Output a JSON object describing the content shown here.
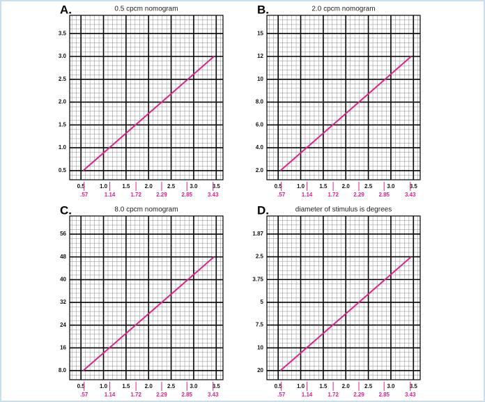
{
  "chart_data": [
    {
      "type": "line",
      "panel": "A.",
      "title": "0.5 cpcm nomogram",
      "xlim": [
        0.25,
        3.65
      ],
      "xticks": [
        0.5,
        {
          "value": 1.0,
          "label": "1.0"
        },
        1.5,
        {
          "value": 2.0,
          "label": "2.0"
        },
        2.5,
        {
          "value": 3.0,
          "label": "3.0"
        },
        3.5
      ],
      "xticks2": [
        {
          "value": 0.57,
          "label": ".57"
        },
        1.14,
        1.72,
        2.29,
        2.85,
        3.43
      ],
      "xticks2_color": "#e0218a",
      "ylim": [
        0.3,
        3.9
      ],
      "yticks": [
        0.5,
        {
          "value": 1.0,
          "label": "1.0"
        },
        1.5,
        {
          "value": 2.0,
          "label": "2.0"
        },
        2.5,
        {
          "value": 3.0,
          "label": "3.0"
        },
        3.5
      ],
      "ytick_spacing": "even",
      "grid": true,
      "series": [
        {
          "color": "#e0218a",
          "x": [
            0.55,
            3.45
          ],
          "values": [
            0.5,
            3.0
          ]
        }
      ]
    },
    {
      "type": "line",
      "panel": "B.",
      "title": "2.0 cpcm nomogram",
      "xlim": [
        0.25,
        3.65
      ],
      "xticks": [
        0.5,
        {
          "value": 1.0,
          "label": "1.0"
        },
        1.5,
        {
          "value": 2.0,
          "label": "2.0"
        },
        2.5,
        {
          "value": 3.0,
          "label": "3.0"
        },
        3.5
      ],
      "xticks2": [
        {
          "value": 0.57,
          "label": ".57"
        },
        1.14,
        1.72,
        2.29,
        2.85,
        3.43
      ],
      "xticks2_color": "#e0218a",
      "ylim": [
        1.2,
        17.4
      ],
      "yticks": [
        {
          "value": 2,
          "label": "2.0"
        },
        {
          "value": 4,
          "label": "4.0"
        },
        {
          "value": 6,
          "label": "6.0"
        },
        {
          "value": 8,
          "label": "8.0"
        },
        10,
        12,
        15
      ],
      "ytick_spacing": "even",
      "grid": true,
      "series": [
        {
          "color": "#e0218a",
          "x": [
            0.55,
            3.45
          ],
          "values": [
            2,
            12
          ]
        }
      ]
    },
    {
      "type": "line",
      "panel": "C.",
      "title": "8.0 cpcm nomogram",
      "xlim": [
        0.25,
        3.65
      ],
      "xticks": [
        0.5,
        {
          "value": 1.0,
          "label": "1.0"
        },
        1.5,
        {
          "value": 2.0,
          "label": "2.0"
        },
        2.5,
        {
          "value": 3.0,
          "label": "3.0"
        },
        3.5
      ],
      "xticks2": [
        {
          "value": 0.57,
          "label": ".57"
        },
        1.14,
        1.72,
        2.29,
        2.85,
        3.43
      ],
      "xticks2_color": "#e0218a",
      "ylim": [
        4.8,
        62.4
      ],
      "yticks": [
        {
          "value": 8,
          "label": "8.0"
        },
        16,
        24,
        32,
        40,
        48,
        56
      ],
      "ytick_spacing": "even",
      "grid": true,
      "series": [
        {
          "color": "#e0218a",
          "x": [
            0.55,
            3.45
          ],
          "values": [
            8,
            48
          ]
        }
      ]
    },
    {
      "type": "line",
      "panel": "D.",
      "title": "diameter of stimulus is degrees",
      "xlim": [
        0.25,
        3.65
      ],
      "xticks": [
        0.5,
        {
          "value": 1.0,
          "label": "1.0"
        },
        1.5,
        {
          "value": 2.0,
          "label": "2.0"
        },
        2.5,
        {
          "value": 3.0,
          "label": "3.0"
        },
        3.5
      ],
      "xticks2": [
        {
          "value": 0.57,
          "label": ".57"
        },
        1.14,
        1.72,
        2.29,
        2.85,
        3.43
      ],
      "xticks2_color": "#e0218a",
      "ylim": [
        24,
        1.37
      ],
      "yticks": [
        20,
        10,
        7.5,
        5,
        3.75,
        2.5,
        1.87
      ],
      "ytick_spacing": "even",
      "grid": true,
      "series": [
        {
          "color": "#e0218a",
          "x": [
            0.55,
            3.45
          ],
          "values": [
            20,
            2.5
          ]
        }
      ]
    }
  ]
}
